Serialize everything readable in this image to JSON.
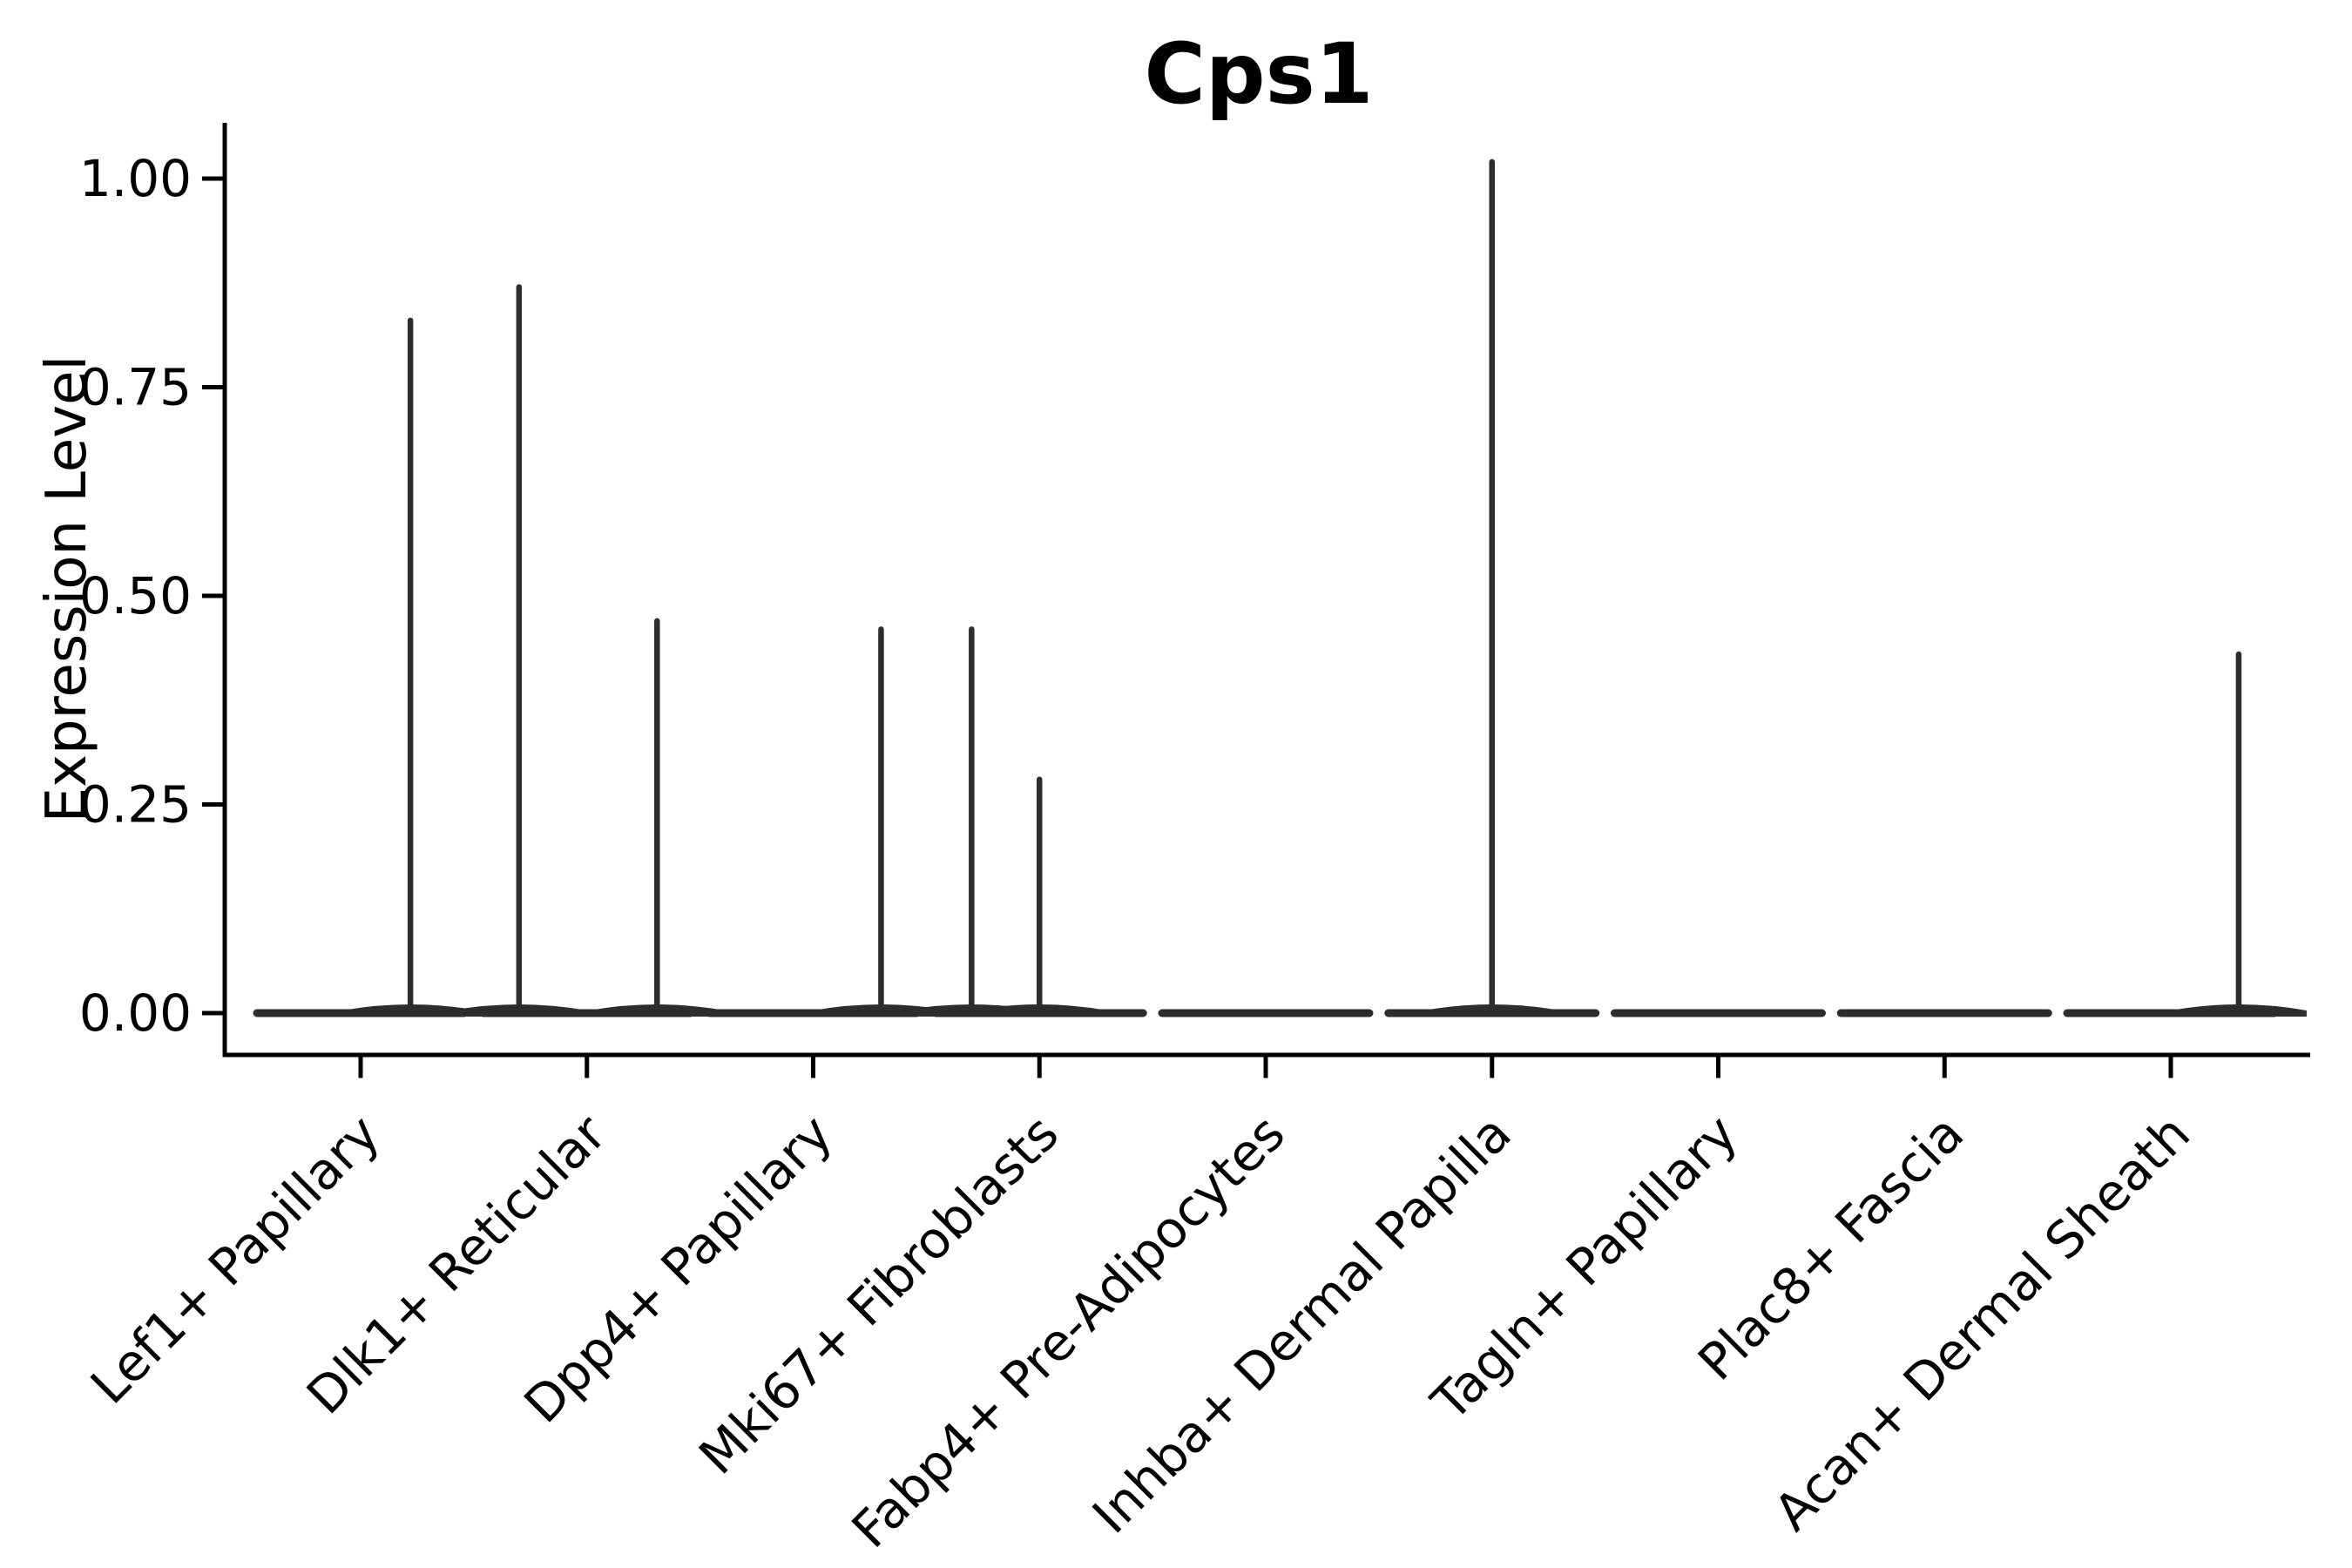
{
  "chart_data": {
    "type": "violin",
    "title": "Cps1",
    "ylabel": "Expression Level",
    "xlabel": "",
    "background_color": "#ffffff",
    "violin_color": "#2d2d2d",
    "axis_color": "#000000",
    "grid": false,
    "legend": "none",
    "ylim": [
      -0.05,
      1.07
    ],
    "yticks": [
      {
        "value": 0.0,
        "label": "0.00"
      },
      {
        "value": 0.25,
        "label": "0.25"
      },
      {
        "value": 0.5,
        "label": "0.50"
      },
      {
        "value": 0.75,
        "label": "0.75"
      },
      {
        "value": 1.0,
        "label": "1.00"
      }
    ],
    "categories": [
      "Lef1+ Papillary",
      "Dlk1+ Reticular",
      "Dpp4+ Papillary",
      "Mki67+ Fibroblasts",
      "Fabp4+ Pre-Adipocytes",
      "Inhba+ Dermal Papilla",
      "Tagln+ Papillary",
      "Plac8+ Fascia",
      "Acan+ Dermal Sheath"
    ],
    "violins": [
      {
        "category": "Lef1+ Papillary",
        "baseline_value": 0,
        "spikes": [
          {
            "dx": 0.22,
            "value": 0.83
          }
        ]
      },
      {
        "category": "Dlk1+ Reticular",
        "baseline_value": 0,
        "spikes": [
          {
            "dx": -0.3,
            "value": 0.87
          },
          {
            "dx": 0.31,
            "value": 0.47
          }
        ]
      },
      {
        "category": "Dpp4+ Papillary",
        "baseline_value": 0,
        "spikes": [
          {
            "dx": 0.3,
            "value": 0.46
          }
        ]
      },
      {
        "category": "Mki67+ Fibroblasts",
        "baseline_value": 0,
        "spikes": [
          {
            "dx": -0.3,
            "value": 0.46
          },
          {
            "dx": 0.0,
            "value": 0.28
          }
        ]
      },
      {
        "category": "Fabp4+ Pre-Adipocytes",
        "baseline_value": 0,
        "spikes": []
      },
      {
        "category": "Inhba+ Dermal Papilla",
        "baseline_value": 0,
        "spikes": [
          {
            "dx": 0.0,
            "value": 1.02
          }
        ]
      },
      {
        "category": "Tagln+ Papillary",
        "baseline_value": 0,
        "spikes": []
      },
      {
        "category": "Plac8+ Fascia",
        "baseline_value": 0,
        "spikes": []
      },
      {
        "category": "Acan+ Dermal Sheath",
        "baseline_value": 0,
        "spikes": [
          {
            "dx": 0.3,
            "value": 0.43
          }
        ]
      }
    ]
  }
}
